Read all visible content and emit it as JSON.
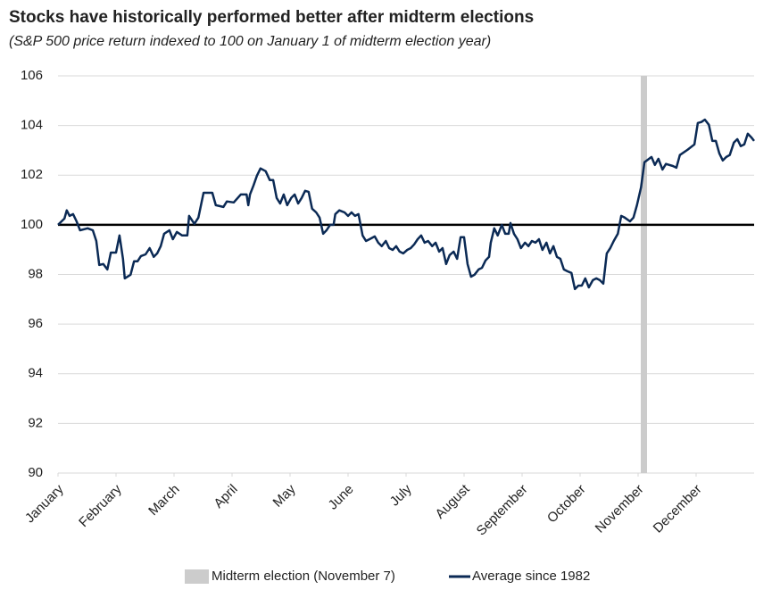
{
  "chart_data": {
    "type": "line",
    "title": "Stocks have historically performed better after midterm elections",
    "subtitle": "(S&P 500 price return indexed to 100 on January 1 of midterm election year)",
    "xlim": [
      0,
      12
    ],
    "xticks": [
      {
        "value": 0,
        "label": "January"
      },
      {
        "value": 1,
        "label": "February"
      },
      {
        "value": 2,
        "label": "March"
      },
      {
        "value": 3,
        "label": "April"
      },
      {
        "value": 4,
        "label": "May"
      },
      {
        "value": 5,
        "label": "June"
      },
      {
        "value": 6,
        "label": "July"
      },
      {
        "value": 7,
        "label": "August"
      },
      {
        "value": 8,
        "label": "September"
      },
      {
        "value": 9,
        "label": "October"
      },
      {
        "value": 10,
        "label": "November"
      },
      {
        "value": 11,
        "label": "December"
      }
    ],
    "ylim": [
      90,
      106
    ],
    "yticks": [
      90,
      92,
      94,
      96,
      98,
      100,
      102,
      104,
      106
    ],
    "grid": true,
    "reference_line": 100,
    "midterm": {
      "name": "Midterm election (November 7)",
      "x": 10.1,
      "color": "#cccccc"
    },
    "x": [
      0,
      0.11,
      0.15,
      0.2,
      0.26,
      0.32,
      0.38,
      0.51,
      0.6,
      0.66,
      0.71,
      0.78,
      0.85,
      0.91,
      1.0,
      1.06,
      1.12,
      1.15,
      1.25,
      1.31,
      1.37,
      1.43,
      1.51,
      1.58,
      1.65,
      1.71,
      1.77,
      1.83,
      1.92,
      1.98,
      2.05,
      2.14,
      2.23,
      2.26,
      2.35,
      2.42,
      2.51,
      2.66,
      2.72,
      2.85,
      2.91,
      3.03,
      3.15,
      3.25,
      3.28,
      3.31,
      3.37,
      3.43,
      3.49,
      3.58,
      3.65,
      3.71,
      3.77,
      3.83,
      3.89,
      3.95,
      4.02,
      4.08,
      4.14,
      4.2,
      4.26,
      4.32,
      4.38,
      4.45,
      4.51,
      4.57,
      4.63,
      4.69,
      4.75,
      4.78,
      4.85,
      4.94,
      5.0,
      5.06,
      5.12,
      5.18,
      5.25,
      5.31,
      5.37,
      5.46,
      5.52,
      5.58,
      5.65,
      5.71,
      5.77,
      5.83,
      5.89,
      5.95,
      6.02,
      6.08,
      6.14,
      6.2,
      6.26,
      6.32,
      6.38,
      6.45,
      6.51,
      6.57,
      6.63,
      6.69,
      6.75,
      6.82,
      6.88,
      6.94,
      7.0,
      7.06,
      7.12,
      7.18,
      7.25,
      7.31,
      7.37,
      7.43,
      7.46,
      7.52,
      7.58,
      7.65,
      7.71,
      7.77,
      7.8,
      7.86,
      7.92,
      7.98,
      8.05,
      8.11,
      8.17,
      8.23,
      8.29,
      8.35,
      8.42,
      8.48,
      8.54,
      8.6,
      8.66,
      8.72,
      8.78,
      8.85,
      8.91,
      8.97,
      9.03,
      9.09,
      9.15,
      9.22,
      9.28,
      9.34,
      9.4,
      9.46,
      9.52,
      9.58,
      9.65,
      9.71,
      9.77,
      9.86,
      9.92,
      9.98,
      10.05,
      10.11,
      10.23,
      10.29,
      10.35,
      10.42,
      10.48,
      10.6,
      10.66,
      10.72,
      10.85,
      10.97,
      11.03,
      11.09,
      11.15,
      11.22,
      11.28,
      11.34,
      11.4,
      11.46,
      11.52,
      11.58,
      11.65,
      11.71,
      11.77,
      11.83,
      11.89,
      11.95,
      12.0
    ],
    "series": [
      {
        "name": "Average since 1982",
        "color": "#0b2a55",
        "values": [
          100.0,
          100.25,
          100.58,
          100.36,
          100.43,
          100.14,
          99.78,
          99.86,
          99.78,
          99.35,
          98.38,
          98.42,
          98.2,
          98.88,
          98.88,
          99.57,
          98.63,
          97.84,
          97.99,
          98.53,
          98.53,
          98.74,
          98.81,
          99.06,
          98.71,
          98.85,
          99.14,
          99.64,
          99.78,
          99.42,
          99.71,
          99.57,
          99.57,
          100.36,
          100.04,
          100.29,
          101.29,
          101.29,
          100.79,
          100.72,
          100.94,
          100.9,
          101.22,
          101.22,
          100.79,
          101.22,
          101.58,
          101.98,
          102.27,
          102.16,
          101.8,
          101.8,
          101.08,
          100.86,
          101.22,
          100.79,
          101.08,
          101.22,
          100.86,
          101.08,
          101.37,
          101.33,
          100.65,
          100.5,
          100.29,
          99.64,
          99.78,
          100.0,
          100.0,
          100.43,
          100.58,
          100.5,
          100.36,
          100.5,
          100.36,
          100.43,
          99.57,
          99.35,
          99.42,
          99.53,
          99.28,
          99.14,
          99.35,
          99.06,
          98.99,
          99.14,
          98.92,
          98.85,
          98.99,
          99.06,
          99.21,
          99.42,
          99.57,
          99.28,
          99.35,
          99.14,
          99.28,
          98.92,
          99.06,
          98.42,
          98.78,
          98.92,
          98.63,
          99.5,
          99.5,
          98.42,
          97.91,
          97.99,
          98.2,
          98.27,
          98.56,
          98.71,
          99.28,
          99.86,
          99.57,
          100.0,
          99.64,
          99.64,
          100.07,
          99.64,
          99.42,
          99.06,
          99.28,
          99.14,
          99.35,
          99.28,
          99.42,
          98.99,
          99.28,
          98.85,
          99.14,
          98.71,
          98.63,
          98.2,
          98.13,
          98.06,
          97.41,
          97.55,
          97.55,
          97.84,
          97.48,
          97.77,
          97.84,
          97.77,
          97.63,
          98.85,
          99.06,
          99.35,
          99.64,
          100.36,
          100.29,
          100.14,
          100.29,
          100.79,
          101.51,
          102.52,
          102.73,
          102.41,
          102.66,
          102.23,
          102.45,
          102.37,
          102.3,
          102.81,
          103.02,
          103.24,
          104.1,
          104.14,
          104.24,
          104.03,
          103.38,
          103.38,
          102.88,
          102.59,
          102.73,
          102.81,
          103.31,
          103.45,
          103.17,
          103.24,
          103.67,
          103.53,
          103.38
        ]
      }
    ]
  }
}
